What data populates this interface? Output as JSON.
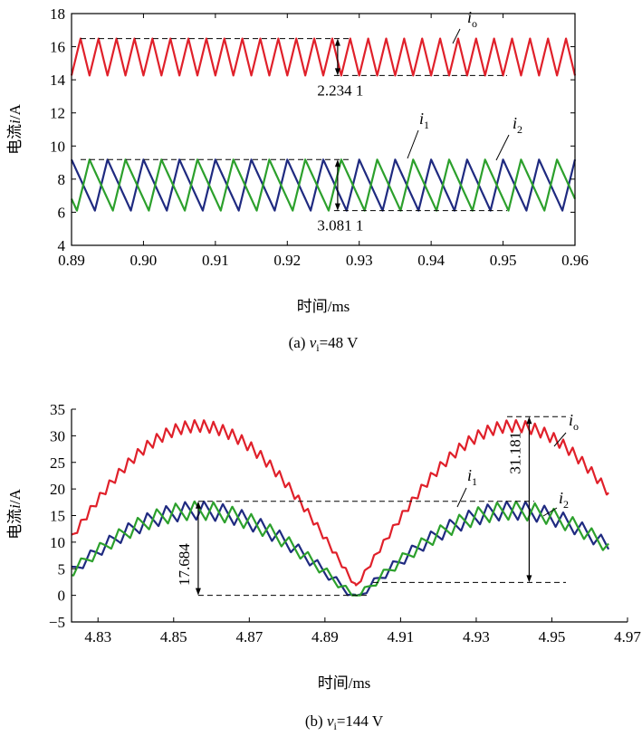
{
  "chart_data": [
    {
      "type": "line",
      "panel": "a",
      "caption": {
        "prefix": "(a) ",
        "var": "v",
        "sub": "i",
        "rest": "=48 V"
      },
      "xlabel": "时间/ms",
      "ylabel": "电流i/A",
      "xlim": [
        0.89,
        0.96
      ],
      "ylim": [
        4,
        18
      ],
      "xticks": [
        "0.89",
        "0.90",
        "0.91",
        "0.92",
        "0.93",
        "0.94",
        "0.95",
        "0.96"
      ],
      "yticks": [
        "4",
        "6",
        "8",
        "10",
        "12",
        "14",
        "16",
        "18"
      ],
      "grid": false,
      "series": [
        {
          "name": "io",
          "label_main": "i",
          "label_sub": "o",
          "color": "#e0202a",
          "shape": "triangle",
          "min": 14.26,
          "max": 16.49,
          "period": 0.0025,
          "duty": 0.5,
          "phase": 0.0
        },
        {
          "name": "i1",
          "label_main": "i",
          "label_sub": "1",
          "color": "#1f2a80",
          "shape": "sawtooth",
          "min": 6.1,
          "max": 9.18,
          "period": 0.005,
          "duty": 0.65,
          "phase": 0.0
        },
        {
          "name": "i2",
          "label_main": "i",
          "label_sub": "2",
          "color": "#2ca02c",
          "shape": "sawtooth",
          "min": 6.1,
          "max": 9.18,
          "period": 0.005,
          "duty": 0.65,
          "phase": 0.5
        }
      ],
      "annotations": [
        {
          "text": "2.234 1",
          "x": 0.927,
          "y_top": 16.49,
          "y_bottom": 14.26
        },
        {
          "text": "3.081 1",
          "x": 0.927,
          "y_top": 9.18,
          "y_bottom": 6.1
        }
      ]
    },
    {
      "type": "line",
      "panel": "b",
      "caption": {
        "prefix": "(b) ",
        "var": "v",
        "sub": "i",
        "rest": "=144 V"
      },
      "xlabel": "时间/ms",
      "ylabel": "电流i/A",
      "xlim": [
        4.823,
        4.97
      ],
      "ylim": [
        -5,
        35
      ],
      "xticks": [
        "4.83",
        "4.85",
        "4.87",
        "4.89",
        "4.91",
        "4.93",
        "4.95",
        "4.97"
      ],
      "yticks": [
        "−5",
        "0",
        "5",
        "10",
        "15",
        "20",
        "25",
        "30",
        "35"
      ],
      "grid": false,
      "rect_period": 0.0834,
      "rect_peak_x": 4.8565,
      "series": [
        {
          "name": "io",
          "label_main": "i",
          "label_sub": "o",
          "color": "#e0202a",
          "amp": 33.0,
          "floor": 2.0,
          "ripple": 2.3,
          "period": 0.0025,
          "phase": 0.0
        },
        {
          "name": "i1",
          "label_main": "i",
          "label_sub": "1",
          "color": "#1f2a80",
          "amp": 17.7,
          "floor": 0.0,
          "ripple": 3.5,
          "period": 0.005,
          "phase": 0.0
        },
        {
          "name": "i2",
          "label_main": "i",
          "label_sub": "2",
          "color": "#2ca02c",
          "amp": 17.7,
          "floor": 0.0,
          "ripple": 3.5,
          "period": 0.005,
          "phase": 0.5
        }
      ],
      "annotations": [
        {
          "text": "17.684",
          "x": 4.8565,
          "y_top": 17.684,
          "y_bottom": 0.0
        },
        {
          "text": "31.181",
          "x": 4.944,
          "y_top": 33.6,
          "y_bottom": 2.419
        }
      ]
    }
  ]
}
